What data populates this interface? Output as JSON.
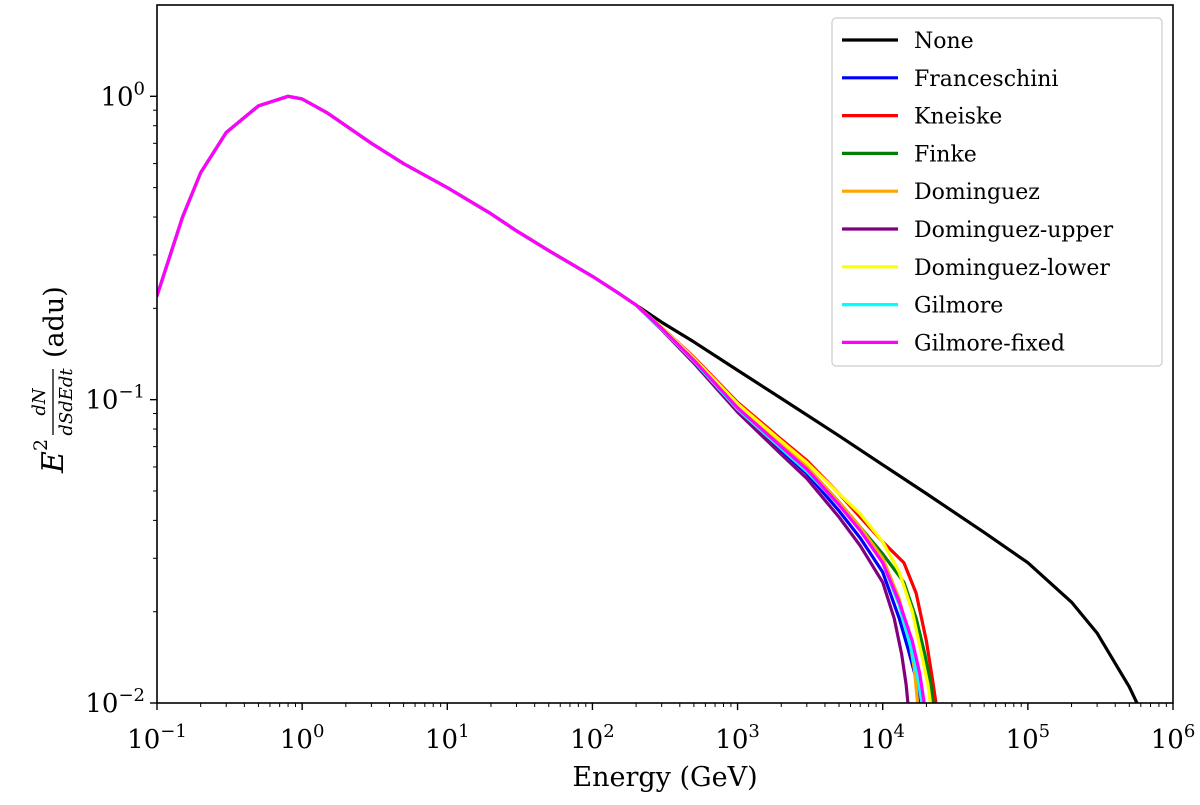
{
  "chart_data": {
    "type": "line",
    "xscale": "log",
    "yscale": "log",
    "xlim": [
      0.1,
      1000000
    ],
    "ylim": [
      0.01,
      2.0
    ],
    "xlabel": "Energy (GeV)",
    "ylabel": {
      "prefix": "E",
      "power": "2",
      "numerator": "dN",
      "denominator": "dSdEdt",
      "unit": "(adu)"
    },
    "x_ticks": [
      {
        "value": 0.1,
        "base": "10",
        "exp": "−1"
      },
      {
        "value": 1,
        "base": "10",
        "exp": "0"
      },
      {
        "value": 10,
        "base": "10",
        "exp": "1"
      },
      {
        "value": 100,
        "base": "10",
        "exp": "2"
      },
      {
        "value": 1000,
        "base": "10",
        "exp": "3"
      },
      {
        "value": 10000,
        "base": "10",
        "exp": "4"
      },
      {
        "value": 100000,
        "base": "10",
        "exp": "5"
      },
      {
        "value": 1000000,
        "base": "10",
        "exp": "6"
      }
    ],
    "y_ticks": [
      {
        "value": 0.01,
        "base": "10",
        "exp": "−2"
      },
      {
        "value": 0.1,
        "base": "10",
        "exp": "−1"
      },
      {
        "value": 1,
        "base": "10",
        "exp": "0"
      }
    ],
    "legend_position": "top-right",
    "base_curve": {
      "x": [
        0.1,
        0.15,
        0.2,
        0.3,
        0.5,
        0.8,
        1.0,
        1.5,
        2,
        3,
        5,
        10,
        20,
        30,
        50,
        100,
        150,
        200
      ],
      "y": [
        0.22,
        0.4,
        0.56,
        0.76,
        0.93,
        1.0,
        0.98,
        0.88,
        0.8,
        0.7,
        0.6,
        0.5,
        0.41,
        0.36,
        0.31,
        0.255,
        0.225,
        0.205
      ]
    },
    "series": [
      {
        "name": "None",
        "color": "#000000",
        "x": [
          200,
          300,
          500,
          1000,
          2000,
          5000,
          10000,
          20000,
          50000,
          100000,
          200000,
          300000,
          400000,
          500000,
          570000
        ],
        "y": [
          0.205,
          0.18,
          0.155,
          0.125,
          0.101,
          0.076,
          0.061,
          0.049,
          0.0365,
          0.029,
          0.0215,
          0.017,
          0.0135,
          0.0113,
          0.0099
        ]
      },
      {
        "name": "Franceschini",
        "color": "#0000ff",
        "x": [
          200,
          300,
          500,
          1000,
          2000,
          3000,
          5000,
          7000,
          10000,
          13000,
          15000,
          17000,
          18500
        ],
        "y": [
          0.205,
          0.172,
          0.135,
          0.093,
          0.068,
          0.057,
          0.043,
          0.035,
          0.027,
          0.019,
          0.015,
          0.012,
          0.0097
        ]
      },
      {
        "name": "Kneiske",
        "color": "#ff0000",
        "x": [
          200,
          300,
          500,
          1000,
          2000,
          3000,
          5000,
          7000,
          10000,
          14000,
          17000,
          20000,
          22000,
          23500
        ],
        "y": [
          0.205,
          0.173,
          0.138,
          0.098,
          0.074,
          0.063,
          0.049,
          0.041,
          0.034,
          0.029,
          0.023,
          0.016,
          0.012,
          0.0097
        ]
      },
      {
        "name": "Finke",
        "color": "#008000",
        "x": [
          200,
          300,
          500,
          1000,
          2000,
          3000,
          5000,
          7000,
          10000,
          14000,
          17000,
          19500,
          21500,
          22500
        ],
        "y": [
          0.205,
          0.172,
          0.136,
          0.095,
          0.071,
          0.06,
          0.046,
          0.038,
          0.031,
          0.025,
          0.019,
          0.0145,
          0.0115,
          0.0097
        ]
      },
      {
        "name": "Dominguez",
        "color": "#ffa500",
        "x": [
          200,
          300,
          500,
          1000,
          2000,
          3000,
          5000,
          7000,
          10000,
          13000,
          15000,
          16500,
          17500
        ],
        "y": [
          0.205,
          0.172,
          0.136,
          0.095,
          0.071,
          0.06,
          0.046,
          0.038,
          0.03,
          0.022,
          0.017,
          0.013,
          0.0097
        ]
      },
      {
        "name": "Dominguez-upper",
        "color": "#800080",
        "x": [
          200,
          300,
          500,
          1000,
          2000,
          3000,
          5000,
          7000,
          10000,
          12000,
          13500,
          14500,
          15000
        ],
        "y": [
          0.205,
          0.17,
          0.132,
          0.091,
          0.066,
          0.055,
          0.041,
          0.033,
          0.025,
          0.019,
          0.0145,
          0.0115,
          0.0097
        ]
      },
      {
        "name": "Dominguez-lower",
        "color": "#ffff00",
        "x": [
          200,
          300,
          500,
          1000,
          2000,
          3000,
          5000,
          7000,
          10000,
          13000,
          16000,
          18500,
          20500,
          21500
        ],
        "y": [
          0.205,
          0.173,
          0.137,
          0.097,
          0.073,
          0.062,
          0.049,
          0.042,
          0.034,
          0.027,
          0.02,
          0.0145,
          0.0115,
          0.0097
        ]
      },
      {
        "name": "Gilmore",
        "color": "#00ffff",
        "x": [
          200,
          300,
          500,
          1000,
          2000,
          3000,
          5000,
          7000,
          10000,
          13000,
          15500,
          17500,
          18800
        ],
        "y": [
          0.205,
          0.171,
          0.134,
          0.093,
          0.069,
          0.058,
          0.045,
          0.037,
          0.029,
          0.021,
          0.0155,
          0.012,
          0.0097
        ]
      },
      {
        "name": "Gilmore-fixed",
        "color": "#ff00ff",
        "x": [
          200,
          300,
          500,
          1000,
          2000,
          3000,
          5000,
          7000,
          10000,
          13000,
          16000,
          18000,
          19500
        ],
        "y": [
          0.205,
          0.172,
          0.135,
          0.094,
          0.07,
          0.059,
          0.045,
          0.037,
          0.029,
          0.0215,
          0.016,
          0.0125,
          0.0097
        ]
      }
    ]
  }
}
